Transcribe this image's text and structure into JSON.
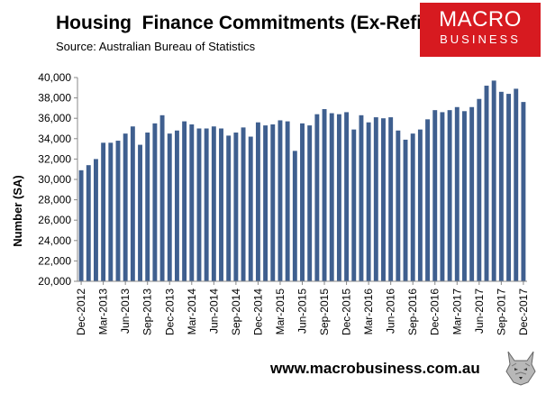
{
  "header": {
    "title": "Housing  Finance Commitments (Ex-Refi)",
    "subtitle": "Source: Australian Bureau of Statistics"
  },
  "logo": {
    "line1": "MACRO",
    "line2": "BUSINESS",
    "bg": "#d71a20"
  },
  "footer": {
    "url": "www.macrobusiness.com.au"
  },
  "chart_data": {
    "type": "bar",
    "ylabel": "Number (SA)",
    "xlabel": "",
    "ylim": [
      20000,
      40000
    ],
    "yticks": [
      20000,
      22000,
      24000,
      26000,
      28000,
      30000,
      32000,
      34000,
      36000,
      38000,
      40000
    ],
    "ytick_labels": [
      "20,000",
      "22,000",
      "24,000",
      "26,000",
      "28,000",
      "30,000",
      "32,000",
      "34,000",
      "36,000",
      "38,000",
      "40,000"
    ],
    "bar_color": "#3f5f8f",
    "grid": false,
    "categories": [
      "Dec-2012",
      "Jan-2013",
      "Feb-2013",
      "Mar-2013",
      "Apr-2013",
      "May-2013",
      "Jun-2013",
      "Jul-2013",
      "Aug-2013",
      "Sep-2013",
      "Oct-2013",
      "Nov-2013",
      "Dec-2013",
      "Jan-2014",
      "Feb-2014",
      "Mar-2014",
      "Apr-2014",
      "May-2014",
      "Jun-2014",
      "Jul-2014",
      "Aug-2014",
      "Sep-2014",
      "Oct-2014",
      "Nov-2014",
      "Dec-2014",
      "Jan-2015",
      "Feb-2015",
      "Mar-2015",
      "Apr-2015",
      "May-2015",
      "Jun-2015",
      "Jul-2015",
      "Aug-2015",
      "Sep-2015",
      "Oct-2015",
      "Nov-2015",
      "Dec-2015",
      "Jan-2016",
      "Feb-2016",
      "Mar-2016",
      "Apr-2016",
      "May-2016",
      "Jun-2016",
      "Jul-2016",
      "Aug-2016",
      "Sep-2016",
      "Oct-2016",
      "Nov-2016",
      "Dec-2016",
      "Jan-2017",
      "Feb-2017",
      "Mar-2017",
      "Apr-2017",
      "May-2017",
      "Jun-2017",
      "Jul-2017",
      "Aug-2017",
      "Sep-2017",
      "Oct-2017",
      "Nov-2017",
      "Dec-2017"
    ],
    "values": [
      30900,
      31400,
      32000,
      33600,
      33600,
      33800,
      34500,
      35200,
      33400,
      34600,
      35500,
      36300,
      34500,
      34800,
      35700,
      35400,
      35000,
      35000,
      35200,
      35000,
      34300,
      34600,
      35100,
      34200,
      35600,
      35300,
      35400,
      35800,
      35700,
      32800,
      35500,
      35300,
      36400,
      36900,
      36500,
      36400,
      36600,
      34900,
      36300,
      35600,
      36100,
      36000,
      36100,
      34800,
      33900,
      34500,
      34900,
      35900,
      36800,
      36600,
      36800,
      37100,
      36700,
      37100,
      37900,
      39200,
      39700,
      38600,
      38400,
      38900,
      37600
    ],
    "tick_labels": [
      "Dec-2012",
      "Mar-2013",
      "Jun-2013",
      "Sep-2013",
      "Dec-2013",
      "Mar-2014",
      "Jun-2014",
      "Sep-2014",
      "Dec-2014",
      "Mar-2015",
      "Jun-2015",
      "Sep-2015",
      "Dec-2015",
      "Mar-2016",
      "Jun-2016",
      "Sep-2016",
      "Dec-2016",
      "Mar-2017",
      "Jun-2017",
      "Sep-2017",
      "Dec-2017"
    ]
  }
}
